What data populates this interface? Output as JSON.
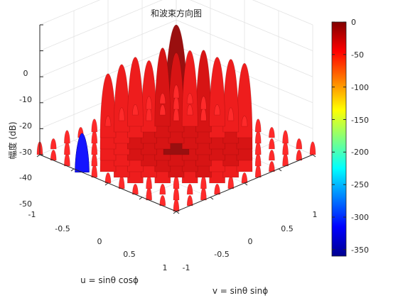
{
  "chart_data": {
    "type": "surface3d",
    "title": "和波束方向图",
    "zlabel": "幅度 (dB)",
    "xlabel": "u = sinθ cosϕ",
    "ylabel": "v = sinθ sinϕ",
    "xlim": [
      -1,
      1
    ],
    "ylim": [
      -1,
      1
    ],
    "zlim": [
      -50,
      0
    ],
    "xticks": [
      -1,
      -0.5,
      0,
      0.5,
      1
    ],
    "xtick_labels": [
      "-1",
      "-0.5",
      "0",
      "0.5",
      "1"
    ],
    "yticks": [
      -1,
      -0.5,
      0,
      0.5,
      1
    ],
    "ytick_labels": [
      "-1",
      "-0.5",
      "0",
      "0.5",
      "1"
    ],
    "zticks": [
      0,
      -10,
      -20,
      -30,
      -40,
      -50
    ],
    "ztick_labels": [
      "0",
      "-10",
      "-20",
      "-30",
      "-40",
      "-50"
    ],
    "main_lobe_peak_db": 0,
    "first_sidelobe_db": -13,
    "sidelobe_spacing_uv": 0.2,
    "grid": true,
    "colormap": "jet",
    "colorbar": {
      "limits": [
        -360,
        0
      ],
      "ticks": [
        0,
        -50,
        -100,
        -150,
        -200,
        -250,
        -300,
        -350
      ],
      "tick_labels": [
        "0",
        "-50",
        "-100",
        "-150",
        "-200",
        "-250",
        "-300",
        "-350"
      ]
    }
  }
}
